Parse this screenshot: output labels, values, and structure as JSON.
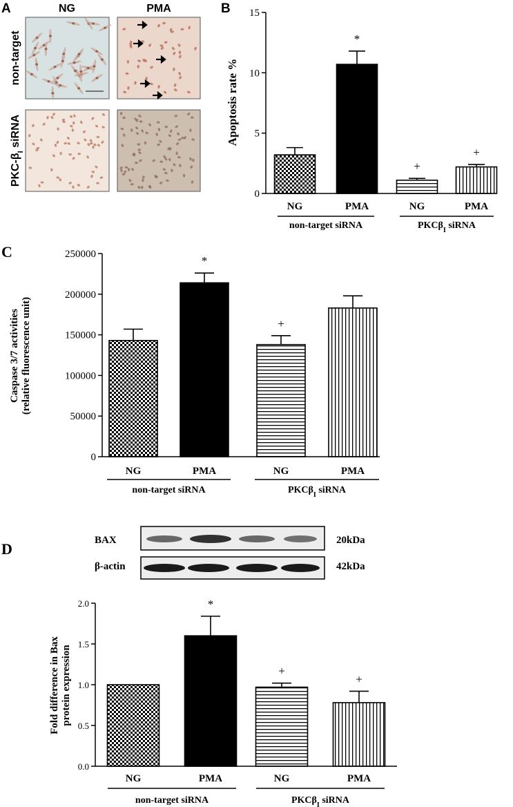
{
  "panel_labels": {
    "a": "A",
    "b": "B",
    "c": "C",
    "d": "D"
  },
  "micrographs": {
    "columns": [
      "NG",
      "PMA"
    ],
    "rows": [
      "non-target",
      "PKC-β",
      "I",
      " siRNA"
    ]
  },
  "blot": {
    "bands": [
      {
        "label": "BAX",
        "size": "20kDa"
      },
      {
        "label": "β-actin",
        "size": "42kDa"
      }
    ]
  },
  "colors": {
    "bar_ng_nontarget": "checker",
    "bar_pma_nontarget": "#000000",
    "bar_ng_pkc": "horizontal-lines",
    "bar_pma_pkc": "vertical-lines"
  },
  "chart_data": [
    {
      "panel": "B",
      "type": "bar",
      "categories": [
        "NG",
        "PMA",
        "NG",
        "PMA"
      ],
      "groups": [
        "non-target siRNA",
        "PKCβ",
        "I",
        " siRNA"
      ],
      "values": [
        3.2,
        10.7,
        1.1,
        2.2
      ],
      "errors": [
        0.6,
        1.1,
        0.15,
        0.2
      ],
      "annotations": [
        "",
        "*",
        "+",
        "+"
      ],
      "ylabel": "Apoptosis rate %",
      "ylim": [
        0,
        15
      ],
      "yticks": [
        "0",
        "5",
        "10",
        "15"
      ]
    },
    {
      "panel": "C",
      "type": "bar",
      "categories": [
        "NG",
        "PMA",
        "NG",
        "PMA"
      ],
      "groups": [
        "non-target siRNA",
        "PKCβ",
        "I",
        " siRNA"
      ],
      "values": [
        143000,
        214000,
        138000,
        183000
      ],
      "errors": [
        14000,
        12000,
        11000,
        15000
      ],
      "annotations": [
        "",
        "*",
        "+",
        ""
      ],
      "ylabel": "Caspase 3/7 activities",
      "ylabel2": "(relative fluorescence unit)",
      "ylim": [
        0,
        250000
      ],
      "yticks": [
        "0",
        "50000",
        "100000",
        "150000",
        "200000",
        "250000"
      ]
    },
    {
      "panel": "D",
      "type": "bar",
      "categories": [
        "NG",
        "PMA",
        "NG",
        "PMA"
      ],
      "groups": [
        "non-target siRNA",
        "PKCβ",
        "I",
        " siRNA"
      ],
      "values": [
        1.0,
        1.6,
        0.97,
        0.78
      ],
      "errors": [
        0.0,
        0.24,
        0.05,
        0.14
      ],
      "annotations": [
        "",
        "*",
        "+",
        "+"
      ],
      "ylabel": "Fold difference in Bax",
      "ylabel2": "protein expression",
      "ylim": [
        0,
        2.0
      ],
      "yticks": [
        "0.0",
        "0.5",
        "1.0",
        "1.5",
        "2.0"
      ]
    }
  ]
}
